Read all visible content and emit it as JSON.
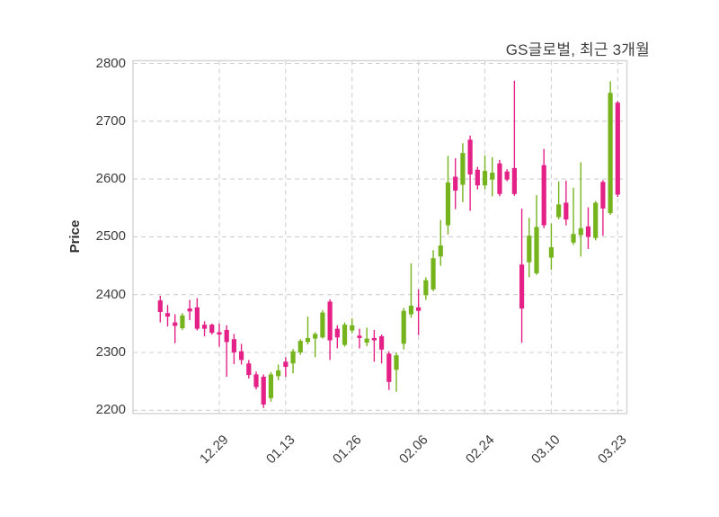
{
  "title": "GS글로벌, 최근 3개월",
  "y_axis": {
    "label": "Price",
    "ticks": [
      2800,
      2700,
      2600,
      2500,
      2400,
      2300,
      2200
    ]
  },
  "x_axis": {
    "tick_labels": [
      "12.29",
      "01.13",
      "01.26",
      "02.06",
      "02.24",
      "03.10",
      "03.23"
    ],
    "tick_candle_indices": [
      8,
      17,
      26,
      35,
      44,
      53,
      62
    ]
  },
  "colors": {
    "up": "#76B41E",
    "down": "#E42187",
    "grid": "#CFCFCF",
    "plot_border": "#D6D6D6",
    "tick_text": "#3C3C3C",
    "title_text": "#3F3F3F",
    "background": "#FFFFFF"
  },
  "chart_data": {
    "type": "candlestick",
    "title": "GS글로벌, 최근 3개월",
    "ylabel": "Price",
    "xlabel": "",
    "grid": true,
    "legend": "none",
    "ylim": [
      2194,
      2805
    ],
    "y_ticks": [
      2200,
      2300,
      2400,
      2500,
      2600,
      2700,
      2800
    ],
    "x_tick_labels": [
      "12.29",
      "01.13",
      "01.26",
      "02.06",
      "02.24",
      "03.10",
      "03.23"
    ],
    "x_tick_positions": [
      8,
      17,
      26,
      35,
      44,
      53,
      62
    ],
    "candle_format": [
      "open",
      "high",
      "low",
      "close"
    ],
    "up_means": "close >= open (green)",
    "down_means": "close < open (magenta)",
    "candles": [
      [
        2390,
        2398,
        2352,
        2370
      ],
      [
        2368,
        2382,
        2345,
        2362
      ],
      [
        2352,
        2366,
        2316,
        2346
      ],
      [
        2342,
        2368,
        2339,
        2364
      ],
      [
        2376,
        2391,
        2356,
        2371
      ],
      [
        2378,
        2394,
        2338,
        2341
      ],
      [
        2348,
        2354,
        2328,
        2341
      ],
      [
        2348,
        2350,
        2331,
        2334
      ],
      [
        2335,
        2350,
        2310,
        2331
      ],
      [
        2339,
        2347,
        2258,
        2318
      ],
      [
        2323,
        2332,
        2280,
        2300
      ],
      [
        2302,
        2315,
        2279,
        2287
      ],
      [
        2281,
        2287,
        2255,
        2261
      ],
      [
        2262,
        2267,
        2236,
        2240
      ],
      [
        2258,
        2262,
        2204,
        2210
      ],
      [
        2221,
        2266,
        2215,
        2262
      ],
      [
        2259,
        2279,
        2252,
        2269
      ],
      [
        2284,
        2292,
        2258,
        2275
      ],
      [
        2281,
        2306,
        2264,
        2302
      ],
      [
        2300,
        2323,
        2296,
        2320
      ],
      [
        2318,
        2362,
        2314,
        2325
      ],
      [
        2324,
        2335,
        2292,
        2332
      ],
      [
        2326,
        2373,
        2324,
        2369
      ],
      [
        2388,
        2392,
        2287,
        2321
      ],
      [
        2341,
        2347,
        2307,
        2326
      ],
      [
        2313,
        2352,
        2310,
        2348
      ],
      [
        2338,
        2359,
        2333,
        2347
      ],
      [
        2329,
        2341,
        2307,
        2325
      ],
      [
        2317,
        2343,
        2311,
        2324
      ],
      [
        2325,
        2339,
        2284,
        2321
      ],
      [
        2328,
        2331,
        2281,
        2305
      ],
      [
        2298,
        2302,
        2235,
        2249
      ],
      [
        2270,
        2300,
        2232,
        2295
      ],
      [
        2315,
        2377,
        2305,
        2372
      ],
      [
        2366,
        2454,
        2360,
        2381
      ],
      [
        2378,
        2409,
        2330,
        2372
      ],
      [
        2399,
        2430,
        2391,
        2425
      ],
      [
        2409,
        2477,
        2406,
        2463
      ],
      [
        2466,
        2529,
        2450,
        2485
      ],
      [
        2520,
        2640,
        2504,
        2594
      ],
      [
        2604,
        2636,
        2548,
        2580
      ],
      [
        2590,
        2662,
        2560,
        2645
      ],
      [
        2668,
        2675,
        2545,
        2608
      ],
      [
        2616,
        2621,
        2582,
        2589
      ],
      [
        2589,
        2641,
        2582,
        2614
      ],
      [
        2599,
        2638,
        2570,
        2611
      ],
      [
        2627,
        2633,
        2570,
        2574
      ],
      [
        2613,
        2617,
        2596,
        2599
      ],
      [
        2619,
        2770,
        2571,
        2574
      ],
      [
        2452,
        2549,
        2317,
        2376
      ],
      [
        2456,
        2533,
        2430,
        2502
      ],
      [
        2437,
        2572,
        2434,
        2517
      ],
      [
        2624,
        2652,
        2515,
        2520
      ],
      [
        2464,
        2523,
        2443,
        2482
      ],
      [
        2534,
        2596,
        2530,
        2556
      ],
      [
        2559,
        2597,
        2520,
        2530
      ],
      [
        2490,
        2585,
        2486,
        2505
      ],
      [
        2503,
        2629,
        2466,
        2515
      ],
      [
        2518,
        2551,
        2479,
        2500
      ],
      [
        2498,
        2562,
        2494,
        2559
      ],
      [
        2595,
        2598,
        2502,
        2549
      ],
      [
        2541,
        2769,
        2538,
        2749
      ],
      [
        2732,
        2735,
        2569,
        2573
      ]
    ]
  }
}
